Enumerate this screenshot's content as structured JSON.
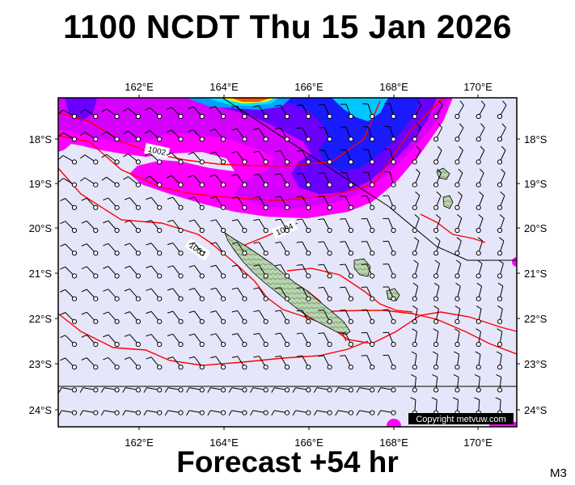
{
  "header": {
    "title": "1100 NCDT Thu 15 Jan 2026"
  },
  "footer": {
    "forecast": "Forecast +54 hr",
    "model": "M3"
  },
  "map": {
    "projection": "mercator",
    "lon_range": [
      160,
      171
    ],
    "lat_range": [
      -24.4,
      -17.9
    ],
    "lon_ticks": [
      "162°E",
      "164°E",
      "166°E",
      "168°E",
      "170°E"
    ],
    "lat_ticks": [
      "18°S",
      "19°S",
      "20°S",
      "21°S",
      "22°S",
      "23°S",
      "24°S"
    ],
    "isobar_labels": [
      "1002",
      "1004",
      "1004"
    ],
    "copyright": "Copyright metvuw.com",
    "colors": {
      "background_calm": "#e6e6fa",
      "rain_magenta": "#ff00ff",
      "rain_violet": "#c000ff",
      "rain_blue": "#1a1aff",
      "rain_cyan": "#00e5ff",
      "rain_yellow": "#ffee00",
      "rain_orange": "#ff5500",
      "isobar": "#ff0000",
      "land": "#a8c8a0"
    }
  }
}
